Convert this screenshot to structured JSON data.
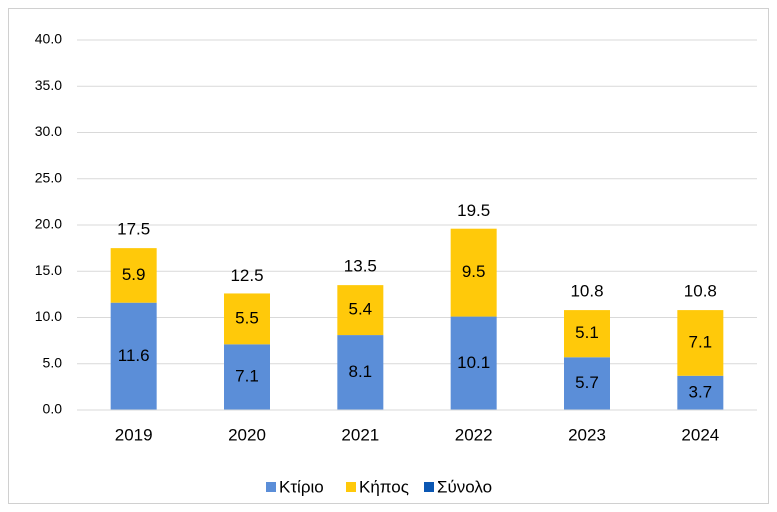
{
  "chart_data": {
    "type": "stacked_bar",
    "categories": [
      "2019",
      "2020",
      "2021",
      "2022",
      "2023",
      "2024"
    ],
    "series": [
      {
        "name": "Κτίριο",
        "color": "#5b8ed8",
        "values": [
          11.6,
          7.1,
          8.1,
          10.1,
          5.7,
          3.7
        ]
      },
      {
        "name": "Κήπος",
        "color": "#ffc90a",
        "values": [
          5.9,
          5.5,
          5.4,
          9.5,
          5.1,
          7.1
        ]
      },
      {
        "name": "Σύνολο",
        "color": "#0b57b3",
        "values": [
          17.5,
          12.5,
          13.5,
          19.5,
          10.8,
          10.8
        ]
      }
    ],
    "ylim": [
      0,
      40
    ],
    "yticks": [
      {
        "value": 0,
        "label": "0.0"
      },
      {
        "value": 5,
        "label": "5.0"
      },
      {
        "value": 10,
        "label": "10.0"
      },
      {
        "value": 15,
        "label": "15.0"
      },
      {
        "value": 20,
        "label": "20.0"
      },
      {
        "value": 25,
        "label": "25.0"
      },
      {
        "value": 30,
        "label": "30.0"
      },
      {
        "value": 35,
        "label": "35.0"
      },
      {
        "value": 40,
        "label": "40.0"
      }
    ],
    "grid": true,
    "legend": "bottom"
  }
}
